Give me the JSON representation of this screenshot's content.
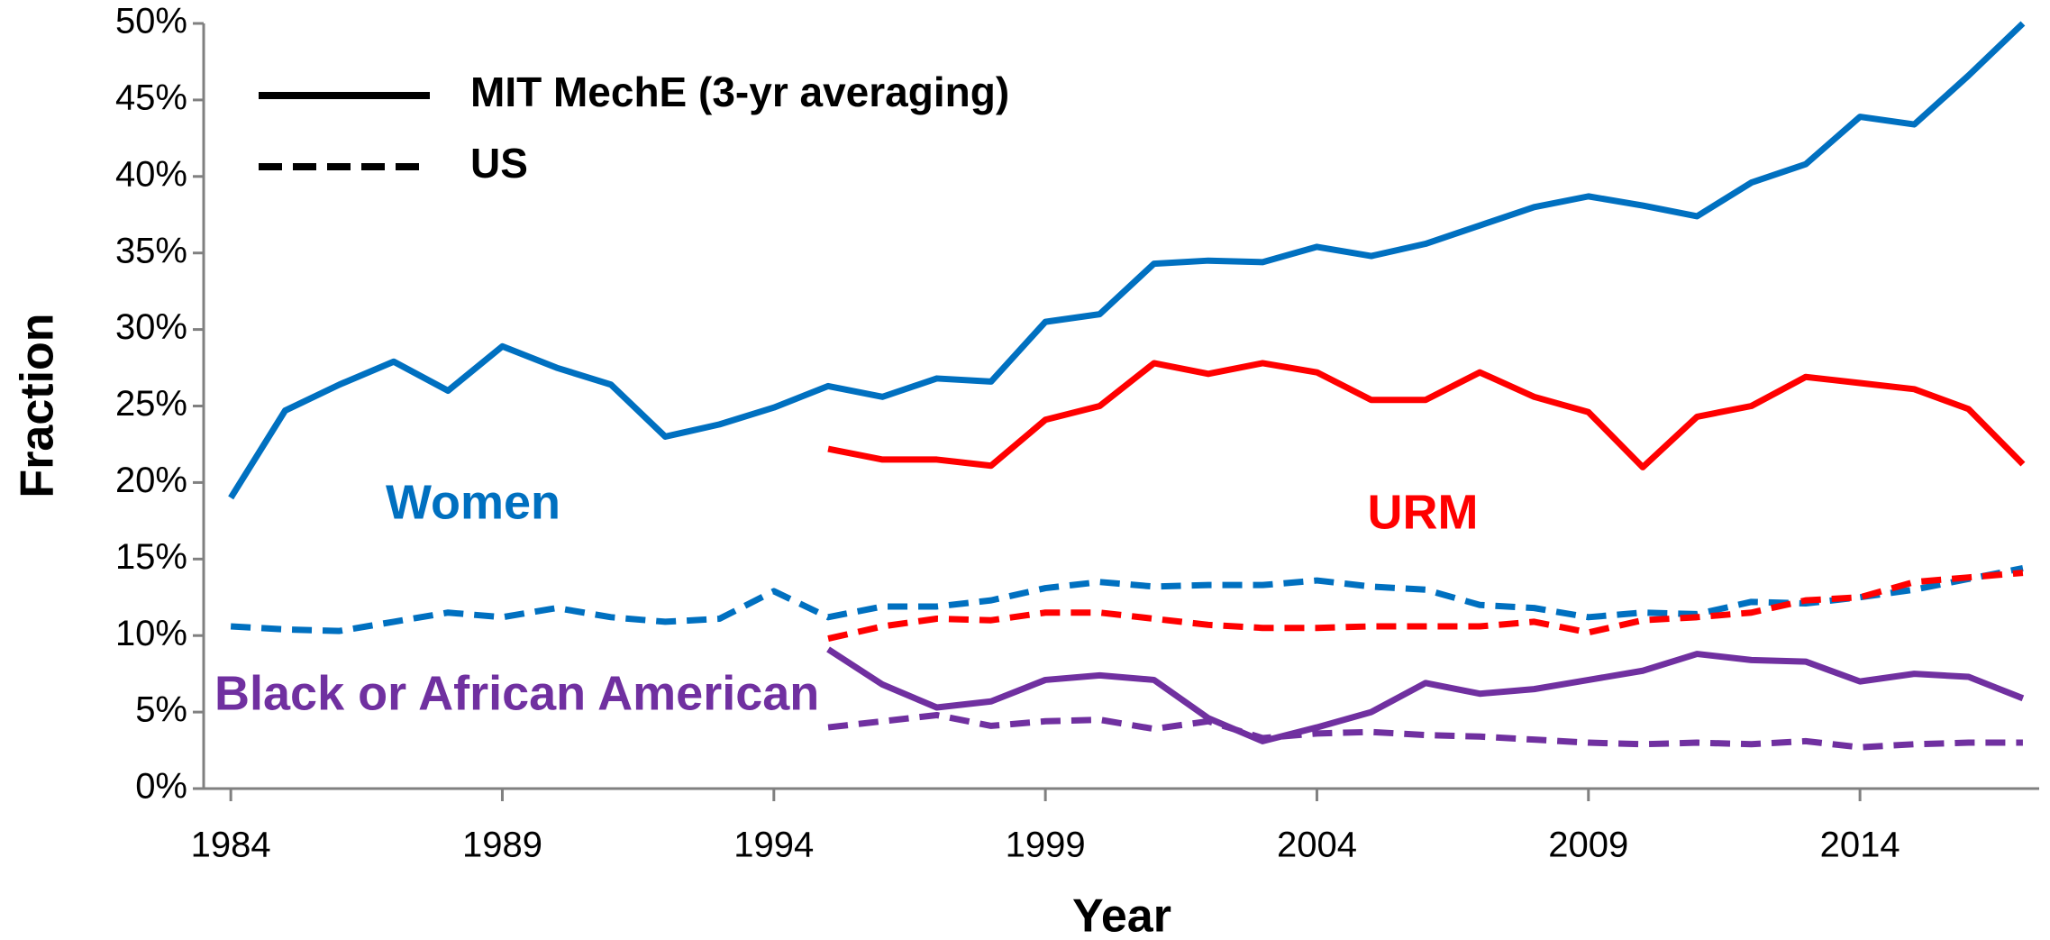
{
  "chart_data": {
    "type": "line",
    "x_label": "Year",
    "y_label": "Fraction",
    "x": [
      1984,
      1985,
      1986,
      1987,
      1988,
      1989,
      1990,
      1991,
      1992,
      1993,
      1994,
      1995,
      1996,
      1997,
      1998,
      1999,
      2000,
      2001,
      2002,
      2003,
      2004,
      2005,
      2006,
      2007,
      2008,
      2009,
      2010,
      2011,
      2012,
      2013,
      2014,
      2015,
      2016,
      2017
    ],
    "xlim": [
      1983.5,
      2017.3
    ],
    "xticks": [
      1984,
      1989,
      1994,
      1999,
      2004,
      2009,
      2014
    ],
    "ylim": [
      0,
      50
    ],
    "yticks": [
      {
        "value": 0,
        "label": "0%"
      },
      {
        "value": 5,
        "label": "5%"
      },
      {
        "value": 10,
        "label": "10%"
      },
      {
        "value": 15,
        "label": "15%"
      },
      {
        "value": 20,
        "label": "20%"
      },
      {
        "value": 25,
        "label": "25%"
      },
      {
        "value": 30,
        "label": "30%"
      },
      {
        "value": 35,
        "label": "35%"
      },
      {
        "value": 40,
        "label": "40%"
      },
      {
        "value": 45,
        "label": "45%"
      },
      {
        "value": 50,
        "label": "50%"
      }
    ],
    "legend": [
      {
        "label": "MIT MechE (3-yr averaging)",
        "dashed": false
      },
      {
        "label": "US",
        "dashed": true
      }
    ],
    "groups": [
      {
        "name": "Women",
        "color": "#0070c0",
        "mit": [
          19,
          24.7,
          26.4,
          27.9,
          26,
          28.9,
          27.5,
          26.4,
          23,
          23.8,
          24.9,
          26.3,
          25.6,
          26.8,
          26.6,
          30.5,
          31,
          34.3,
          34.5,
          34.4,
          35.4,
          34.8,
          35.6,
          36.8,
          38,
          38.7,
          38.1,
          37.4,
          39.6,
          40.8,
          43.9,
          43.4,
          46.6,
          50
        ],
        "us": [
          10.6,
          10.4,
          10.3,
          10.9,
          11.5,
          11.2,
          11.8,
          11.2,
          10.9,
          11.1,
          12.9,
          11.2,
          11.9,
          11.9,
          12.3,
          13.1,
          13.5,
          13.2,
          13.3,
          13.3,
          13.6,
          13.2,
          13.0,
          12.0,
          11.8,
          11.2,
          11.5,
          11.4,
          12.2,
          12.1,
          12.5,
          13.0,
          13.7,
          14.4
        ]
      },
      {
        "name": "URM",
        "color": "#ff0000",
        "mit": [
          null,
          null,
          null,
          null,
          null,
          null,
          null,
          null,
          null,
          null,
          null,
          22.2,
          21.5,
          21.5,
          21.1,
          24.1,
          25.0,
          27.8,
          27.1,
          27.8,
          27.2,
          25.4,
          25.4,
          27.2,
          25.6,
          24.6,
          21.0,
          24.3,
          25.0,
          26.9,
          26.5,
          26.1,
          24.8,
          21.2
        ],
        "us": [
          null,
          null,
          null,
          null,
          null,
          null,
          null,
          null,
          null,
          null,
          null,
          9.8,
          10.6,
          11.1,
          11.0,
          11.5,
          11.5,
          11.1,
          10.7,
          10.5,
          10.5,
          10.6,
          10.6,
          10.6,
          10.9,
          10.2,
          11.0,
          11.2,
          11.5,
          12.3,
          12.5,
          13.5,
          13.8,
          14.1
        ]
      },
      {
        "name": "Black or African American",
        "color": "#7030a0",
        "mit": [
          null,
          null,
          null,
          null,
          null,
          null,
          null,
          null,
          null,
          null,
          null,
          9.1,
          6.8,
          5.3,
          5.7,
          7.1,
          7.4,
          7.1,
          4.6,
          3.1,
          4.0,
          5.0,
          6.9,
          6.2,
          6.5,
          7.1,
          7.7,
          8.8,
          8.4,
          8.3,
          7.0,
          7.5,
          7.3,
          5.9
        ],
        "us": [
          null,
          null,
          null,
          null,
          null,
          null,
          null,
          null,
          null,
          null,
          null,
          4.0,
          4.4,
          4.8,
          4.1,
          4.4,
          4.5,
          3.9,
          4.4,
          3.3,
          3.6,
          3.7,
          3.5,
          3.4,
          3.2,
          3.0,
          2.9,
          3.0,
          2.9,
          3.1,
          2.7,
          2.9,
          3.0,
          3.0
        ]
      }
    ]
  }
}
